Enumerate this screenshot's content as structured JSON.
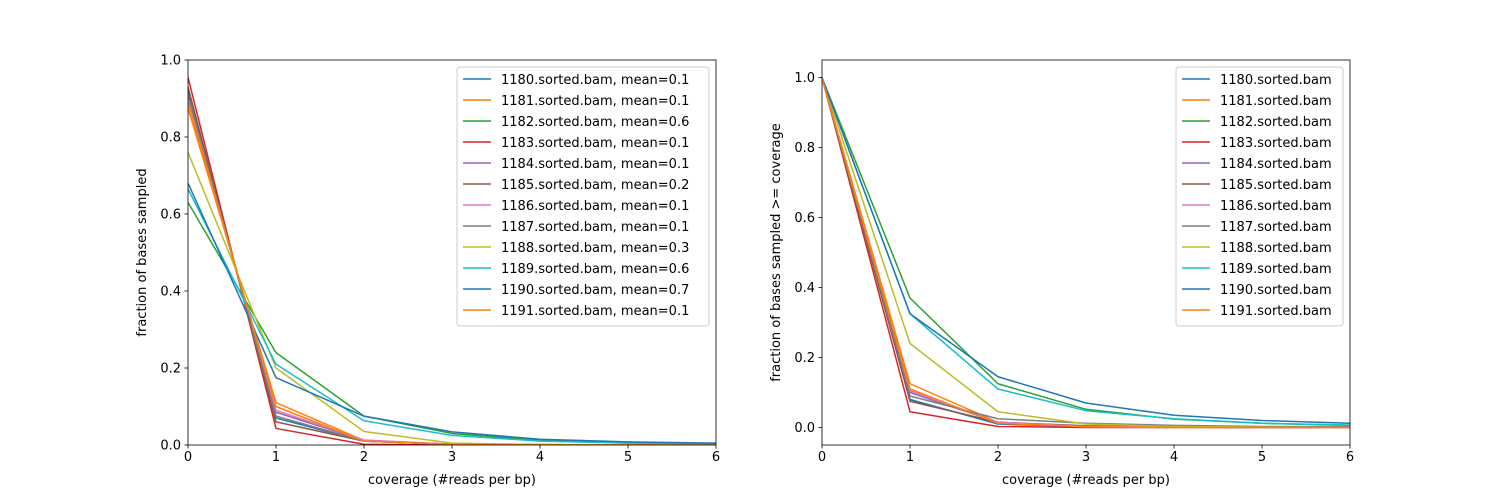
{
  "chart_data": [
    {
      "type": "line",
      "title": "",
      "xlabel": "coverage (#reads per bp)",
      "ylabel": "fraction of bases sampled",
      "xlim": [
        0,
        6
      ],
      "ylim": [
        0,
        1.0
      ],
      "xticks": [
        "0",
        "1",
        "2",
        "3",
        "4",
        "5",
        "6"
      ],
      "yticks": [
        "0.0",
        "0.2",
        "0.4",
        "0.6",
        "0.8",
        "1.0"
      ],
      "grid": false,
      "legend_position": "top-right",
      "x": [
        0,
        1,
        2,
        3,
        4,
        5,
        6
      ],
      "series": [
        {
          "name": "1180.sorted.bam, mean=0.1",
          "color": "#1f77b4",
          "values": [
            0.92,
            0.07,
            0.01,
            0.002,
            0.001,
            0.0,
            0.0
          ]
        },
        {
          "name": "1181.sorted.bam, mean=0.1",
          "color": "#ff7f0e",
          "values": [
            0.875,
            0.11,
            0.012,
            0.002,
            0.001,
            0.0,
            0.0
          ]
        },
        {
          "name": "1182.sorted.bam, mean=0.6",
          "color": "#2ca02c",
          "values": [
            0.63,
            0.24,
            0.075,
            0.03,
            0.012,
            0.006,
            0.003
          ]
        },
        {
          "name": "1183.sorted.bam, mean=0.1",
          "color": "#d62728",
          "values": [
            0.955,
            0.043,
            0.002,
            0.0,
            0.0,
            0.0,
            0.0
          ]
        },
        {
          "name": "1184.sorted.bam, mean=0.1",
          "color": "#9467bd",
          "values": [
            0.9,
            0.085,
            0.012,
            0.002,
            0.0,
            0.0,
            0.0
          ]
        },
        {
          "name": "1185.sorted.bam, mean=0.2",
          "color": "#8c564b",
          "values": [
            0.93,
            0.06,
            0.01,
            0.002,
            0.001,
            0.0,
            0.0
          ]
        },
        {
          "name": "1186.sorted.bam, mean=0.1",
          "color": "#e377c2",
          "values": [
            0.895,
            0.09,
            0.013,
            0.002,
            0.0,
            0.0,
            0.0
          ]
        },
        {
          "name": "1187.sorted.bam, mean=0.1",
          "color": "#7f7f7f",
          "values": [
            0.91,
            0.075,
            0.01,
            0.002,
            0.0,
            0.0,
            0.0
          ]
        },
        {
          "name": "1188.sorted.bam, mean=0.3",
          "color": "#bcbd22",
          "values": [
            0.76,
            0.2,
            0.035,
            0.005,
            0.001,
            0.0,
            0.0
          ]
        },
        {
          "name": "1189.sorted.bam, mean=0.6",
          "color": "#17becf",
          "values": [
            0.665,
            0.21,
            0.063,
            0.025,
            0.01,
            0.005,
            0.003
          ]
        },
        {
          "name": "1190.sorted.bam, mean=0.7",
          "color": "#1f77b4",
          "values": [
            0.68,
            0.175,
            0.075,
            0.034,
            0.015,
            0.008,
            0.005
          ]
        },
        {
          "name": "1191.sorted.bam, mean=0.1",
          "color": "#ff7f0e",
          "values": [
            0.89,
            0.1,
            0.01,
            0.002,
            0.0,
            0.0,
            0.0
          ]
        }
      ]
    },
    {
      "type": "line",
      "title": "",
      "xlabel": "coverage (#reads per bp)",
      "ylabel": "fraction of bases sampled >= coverage",
      "xlim": [
        0,
        6
      ],
      "ylim": [
        -0.05,
        1.05
      ],
      "xticks": [
        "0",
        "1",
        "2",
        "3",
        "4",
        "5",
        "6"
      ],
      "yticks": [
        "0.0",
        "0.2",
        "0.4",
        "0.6",
        "0.8",
        "1.0"
      ],
      "grid": false,
      "legend_position": "top-right",
      "x": [
        0,
        1,
        2,
        3,
        4,
        5,
        6
      ],
      "series": [
        {
          "name": "1180.sorted.bam",
          "color": "#1f77b4",
          "values": [
            1.0,
            0.08,
            0.01,
            0.002,
            0.001,
            0.0,
            0.0
          ]
        },
        {
          "name": "1181.sorted.bam",
          "color": "#ff7f0e",
          "values": [
            1.0,
            0.125,
            0.015,
            0.003,
            0.001,
            0.0,
            0.0
          ]
        },
        {
          "name": "1182.sorted.bam",
          "color": "#2ca02c",
          "values": [
            1.0,
            0.37,
            0.125,
            0.052,
            0.024,
            0.012,
            0.006
          ]
        },
        {
          "name": "1183.sorted.bam",
          "color": "#d62728",
          "values": [
            1.0,
            0.045,
            0.003,
            0.0,
            0.0,
            0.0,
            0.0
          ]
        },
        {
          "name": "1184.sorted.bam",
          "color": "#9467bd",
          "values": [
            1.0,
            0.1,
            0.015,
            0.003,
            0.001,
            0.0,
            0.0
          ]
        },
        {
          "name": "1185.sorted.bam",
          "color": "#8c564b",
          "values": [
            1.0,
            0.075,
            0.015,
            0.005,
            0.002,
            0.001,
            0.0
          ]
        },
        {
          "name": "1186.sorted.bam",
          "color": "#e377c2",
          "values": [
            1.0,
            0.105,
            0.015,
            0.003,
            0.001,
            0.0,
            0.0
          ]
        },
        {
          "name": "1187.sorted.bam",
          "color": "#7f7f7f",
          "values": [
            1.0,
            0.09,
            0.025,
            0.012,
            0.006,
            0.003,
            0.002
          ]
        },
        {
          "name": "1188.sorted.bam",
          "color": "#bcbd22",
          "values": [
            1.0,
            0.24,
            0.045,
            0.01,
            0.003,
            0.001,
            0.0
          ]
        },
        {
          "name": "1189.sorted.bam",
          "color": "#17becf",
          "values": [
            1.0,
            0.325,
            0.11,
            0.048,
            0.025,
            0.012,
            0.007
          ]
        },
        {
          "name": "1190.sorted.bam",
          "color": "#1f77b4",
          "values": [
            1.0,
            0.325,
            0.145,
            0.07,
            0.035,
            0.02,
            0.012
          ]
        },
        {
          "name": "1191.sorted.bam",
          "color": "#ff7f0e",
          "values": [
            1.0,
            0.11,
            0.012,
            0.002,
            0.0,
            0.0,
            0.0
          ]
        }
      ]
    }
  ]
}
